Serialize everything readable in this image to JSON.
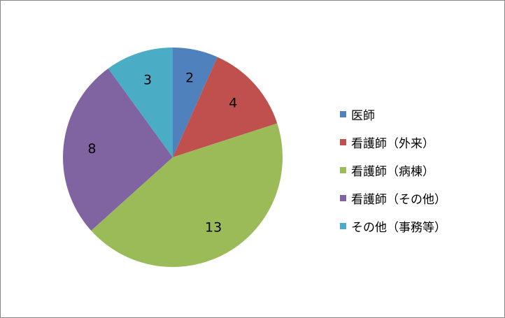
{
  "chart_data": {
    "type": "pie",
    "title": "",
    "categories": [
      "医師",
      "看護師（外来）",
      "看護師（病棟）",
      "看護師（その他）",
      "その他（事務等）"
    ],
    "values": [
      2,
      4,
      13,
      8,
      3
    ],
    "colors": [
      "#4F81BD",
      "#C0504D",
      "#9BBB59",
      "#8064A2",
      "#4BACC6"
    ],
    "legend_position": "right",
    "start_angle": "12 o'clock",
    "direction": "clockwise",
    "data_labels": true
  }
}
